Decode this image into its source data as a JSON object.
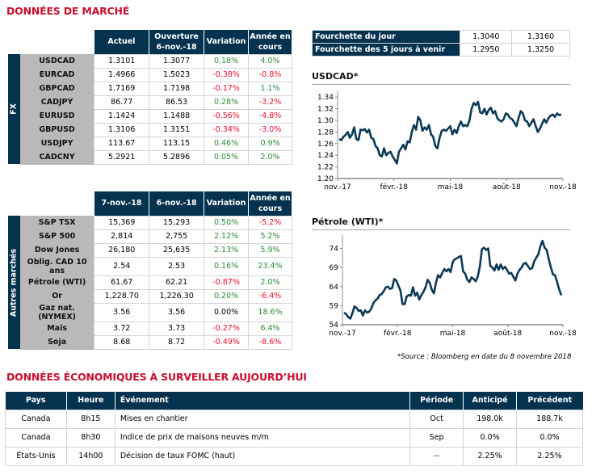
{
  "market_title": "DONNÉES DE MARCHÉ",
  "fx": {
    "side_label": "FX",
    "headers": [
      "Actuel",
      "Ouverture",
      "6-nov.-18",
      "Variation",
      "Année en",
      "cours"
    ],
    "rows": [
      {
        "name": "USDCAD",
        "current": "1.3101",
        "open": "1.3077",
        "change": "0.18%",
        "change_dir": "pos",
        "ytd": "4.0%",
        "ytd_dir": "pos"
      },
      {
        "name": "EURCAD",
        "current": "1.4966",
        "open": "1.5023",
        "change": "-0.38%",
        "change_dir": "neg",
        "ytd": "-0.8%",
        "ytd_dir": "neg"
      },
      {
        "name": "GBPCAD",
        "current": "1.7169",
        "open": "1.7198",
        "change": "-0.17%",
        "change_dir": "neg",
        "ytd": "1.1%",
        "ytd_dir": "pos"
      },
      {
        "name": "CADJPY",
        "current": "86.77",
        "open": "86.53",
        "change": "0.28%",
        "change_dir": "pos",
        "ytd": "-3.2%",
        "ytd_dir": "neg"
      },
      {
        "name": "EURUSD",
        "current": "1.1424",
        "open": "1.1488",
        "change": "-0.56%",
        "change_dir": "neg",
        "ytd": "-4.8%",
        "ytd_dir": "neg"
      },
      {
        "name": "GBPUSD",
        "current": "1.3106",
        "open": "1.3151",
        "change": "-0.34%",
        "change_dir": "neg",
        "ytd": "-3.0%",
        "ytd_dir": "neg"
      },
      {
        "name": "USDJPY",
        "current": "113.67",
        "open": "113.15",
        "change": "0.46%",
        "change_dir": "pos",
        "ytd": "0.9%",
        "ytd_dir": "pos"
      },
      {
        "name": "CADCNY",
        "current": "5.2921",
        "open": "5.2896",
        "change": "0.05%",
        "change_dir": "pos",
        "ytd": "2.0%",
        "ytd_dir": "pos"
      }
    ]
  },
  "other": {
    "side_label": "Autres marchés",
    "headers": [
      "7-nov.-18",
      "6-nov.-18",
      "Variation",
      "Année en",
      "cours"
    ],
    "rows": [
      {
        "name": "S&P TSX",
        "current": "15,369",
        "open": "15,293",
        "change": "0.50%",
        "change_dir": "pos",
        "ytd": "-5.2%",
        "ytd_dir": "neg"
      },
      {
        "name": "S&P 500",
        "current": "2,814",
        "open": "2,755",
        "change": "2.12%",
        "change_dir": "pos",
        "ytd": "5.2%",
        "ytd_dir": "pos"
      },
      {
        "name": "Dow Jones",
        "current": "26,180",
        "open": "25,635",
        "change": "2.13%",
        "change_dir": "pos",
        "ytd": "5.9%",
        "ytd_dir": "pos"
      },
      {
        "name": "Oblig. CAD 10 ans",
        "current": "2.54",
        "open": "2.53",
        "change": "0.16%",
        "change_dir": "pos",
        "ytd": "23.4%",
        "ytd_dir": "pos"
      },
      {
        "name": "Pétrole (WTI)",
        "current": "61.67",
        "open": "62.21",
        "change": "-0.87%",
        "change_dir": "neg",
        "ytd": "2.0%",
        "ytd_dir": "pos"
      },
      {
        "name": "Or",
        "current": "1,228.70",
        "open": "1,226.30",
        "change": "0.20%",
        "change_dir": "pos",
        "ytd": "-6.4%",
        "ytd_dir": "neg"
      },
      {
        "name": "Gaz nat. (NYMEX)",
        "current": "3.56",
        "open": "3.56",
        "change": "0.00%",
        "change_dir": "zero",
        "ytd": "18.6%",
        "ytd_dir": "pos"
      },
      {
        "name": "Maïs",
        "current": "3.72",
        "open": "3.73",
        "change": "-0.27%",
        "change_dir": "neg",
        "ytd": "6.4%",
        "ytd_dir": "pos"
      },
      {
        "name": "Soja",
        "current": "8.68",
        "open": "8.72",
        "change": "-0.49%",
        "change_dir": "neg",
        "ytd": "-8.6%",
        "ytd_dir": "neg"
      }
    ]
  },
  "ranges": [
    {
      "label": "Fourchette du jour",
      "low": "1.3040",
      "high": "1.3160"
    },
    {
      "label": "Fourchette des 5 jours à venir",
      "low": "1.2950",
      "high": "1.3250"
    }
  ],
  "source_note": "*Source : Bloomberg en date du  8 novembre 2018",
  "econ": {
    "title": "DONNÉES ÉCONOMIQUES À SURVEILLER AUJOURD’HUI",
    "headers": [
      "Pays",
      "Heure",
      "Événement",
      "Période",
      "Anticipé",
      "Précédent"
    ],
    "rows": [
      {
        "country": "Canada",
        "time": "8h15",
        "event": "Mises en chantier",
        "period": "Oct",
        "expected": "198.0k",
        "previous": "188.7k"
      },
      {
        "country": "Canada",
        "time": "8h30",
        "event": "Indice de prix de maisons neuves m/m",
        "period": "Sep",
        "expected": "0.0%",
        "previous": "0.0%"
      },
      {
        "country": "États-Unis",
        "time": "14h00",
        "event": "Décision de taux FOMC (haut)",
        "period": "--",
        "expected": "2.25%",
        "previous": "2.25%"
      }
    ]
  },
  "colors": {
    "navy": "#05324f",
    "positive": "#2e8b3a",
    "negative": "#e8112d",
    "title_red": "#c8102e",
    "line": "#0b3a57"
  },
  "chart_data": [
    {
      "type": "line",
      "title": "USDCAD*",
      "xlabel": "",
      "ylabel": "",
      "x_ticks": [
        "nov.-17",
        "févr.-18",
        "mai-18",
        "août-18",
        "nov.-18"
      ],
      "y_ticks": [
        "1.20",
        "1.22",
        "1.24",
        "1.26",
        "1.28",
        "1.30",
        "1.32",
        "1.34"
      ],
      "ylim": [
        1.2,
        1.35
      ],
      "grid": false,
      "series": [
        {
          "name": "USDCAD",
          "x_range": [
            "nov.-17",
            "nov.-18"
          ],
          "values": [
            1.268,
            1.266,
            1.272,
            1.275,
            1.28,
            1.27,
            1.276,
            1.288,
            1.268,
            1.266,
            1.284,
            1.283,
            1.285,
            1.279,
            1.284,
            1.27,
            1.268,
            1.256,
            1.252,
            1.24,
            1.238,
            1.252,
            1.24,
            1.244,
            1.246,
            1.238,
            1.232,
            1.226,
            1.246,
            1.252,
            1.258,
            1.25,
            1.264,
            1.262,
            1.28,
            1.292,
            1.284,
            1.306,
            1.3,
            1.282,
            1.288,
            1.284,
            1.292,
            1.276,
            1.272,
            1.256,
            1.252,
            1.27,
            1.282,
            1.284,
            1.282,
            1.286,
            1.29,
            1.276,
            1.284,
            1.278,
            1.29,
            1.298,
            1.29,
            1.292,
            1.29,
            1.3,
            1.32,
            1.33,
            1.326,
            1.332,
            1.314,
            1.312,
            1.32,
            1.31,
            1.318,
            1.322,
            1.312,
            1.316,
            1.304,
            1.3,
            1.298,
            1.302,
            1.312,
            1.31,
            1.304,
            1.302,
            1.296,
            1.29,
            1.304,
            1.316,
            1.312,
            1.3,
            1.298,
            1.29,
            1.296,
            1.302,
            1.29,
            1.28,
            1.286,
            1.294,
            1.302,
            1.296,
            1.304,
            1.308,
            1.31,
            1.306,
            1.312,
            1.309,
            1.31
          ]
        }
      ]
    },
    {
      "type": "line",
      "title": "Pétrole (WTI)*",
      "xlabel": "",
      "ylabel": "",
      "x_ticks": [
        "nov.-17",
        "févr.-18",
        "mai-18",
        "août-18",
        "nov.-18"
      ],
      "y_ticks": [
        "54",
        "59",
        "64",
        "69",
        "74"
      ],
      "ylim": [
        54,
        77.5
      ],
      "grid": false,
      "series": [
        {
          "name": "WTI",
          "x_range": [
            "nov.-17",
            "nov.-18"
          ],
          "values": [
            57.2,
            56.8,
            56.0,
            55.6,
            57.0,
            58.8,
            58.4,
            57.6,
            57.8,
            56.4,
            57.8,
            57.2,
            57.4,
            58.2,
            59.6,
            60.4,
            60.8,
            61.8,
            62.0,
            62.8,
            63.8,
            64.0,
            63.4,
            63.6,
            66.0,
            65.6,
            64.2,
            63.0,
            59.4,
            59.4,
            61.4,
            61.8,
            61.6,
            63.8,
            61.6,
            62.4,
            60.6,
            61.8,
            62.6,
            63.8,
            65.8,
            65.0,
            63.2,
            62.2,
            65.0,
            67.0,
            66.4,
            67.6,
            68.6,
            68.0,
            68.6,
            67.8,
            70.4,
            71.2,
            71.4,
            71.8,
            72.0,
            68.0,
            67.4,
            65.8,
            65.2,
            66.4,
            66.0,
            65.4,
            66.6,
            69.2,
            73.8,
            74.2,
            73.6,
            74.0,
            69.4,
            69.0,
            68.2,
            69.8,
            68.4,
            69.8,
            68.6,
            69.2,
            68.4,
            67.4,
            67.6,
            66.6,
            65.6,
            67.4,
            68.4,
            69.0,
            70.0,
            70.2,
            69.4,
            68.6,
            68.8,
            70.6,
            71.6,
            72.4,
            74.6,
            76.0,
            74.2,
            73.6,
            71.2,
            69.0,
            67.2,
            67.0,
            65.2,
            63.2,
            61.7
          ]
        }
      ]
    }
  ]
}
